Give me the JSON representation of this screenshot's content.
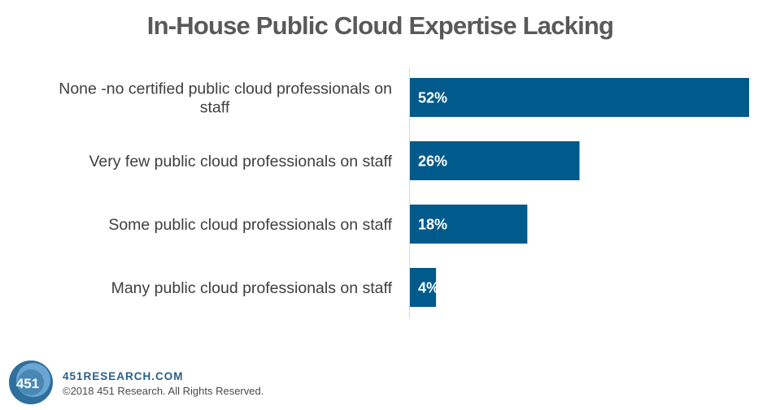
{
  "chart_data": {
    "type": "bar",
    "orientation": "horizontal",
    "title": "In-House Public Cloud Expertise Lacking",
    "categories": [
      "None -no certified public cloud professionals on staff",
      "Very few public cloud professionals on staff",
      "Some public cloud professionals on staff",
      "Many public cloud professionals on staff"
    ],
    "category_lines": [
      [
        "None -no certified public cloud professionals on",
        "staff"
      ],
      [
        "Very few public cloud professionals on staff"
      ],
      [
        "Some public cloud professionals on staff"
      ],
      [
        "Many public cloud professionals on staff"
      ]
    ],
    "values": [
      52,
      26,
      18,
      4
    ],
    "value_labels": [
      "52%",
      "26%",
      "18%",
      "4%"
    ],
    "xlim": [
      0,
      52
    ],
    "grid": false,
    "bar_color": "#005a8c"
  },
  "footer": {
    "logo_text": "451",
    "site": "451RESEARCH.COM",
    "copyright": "©2018 451 Research. All Rights Reserved."
  },
  "colors": {
    "title": "#595959",
    "bar": "#005a8c",
    "logo_outer": "#2e6f9e",
    "logo_inner": "#6aa6d1",
    "site_text": "#2a5f8a"
  }
}
